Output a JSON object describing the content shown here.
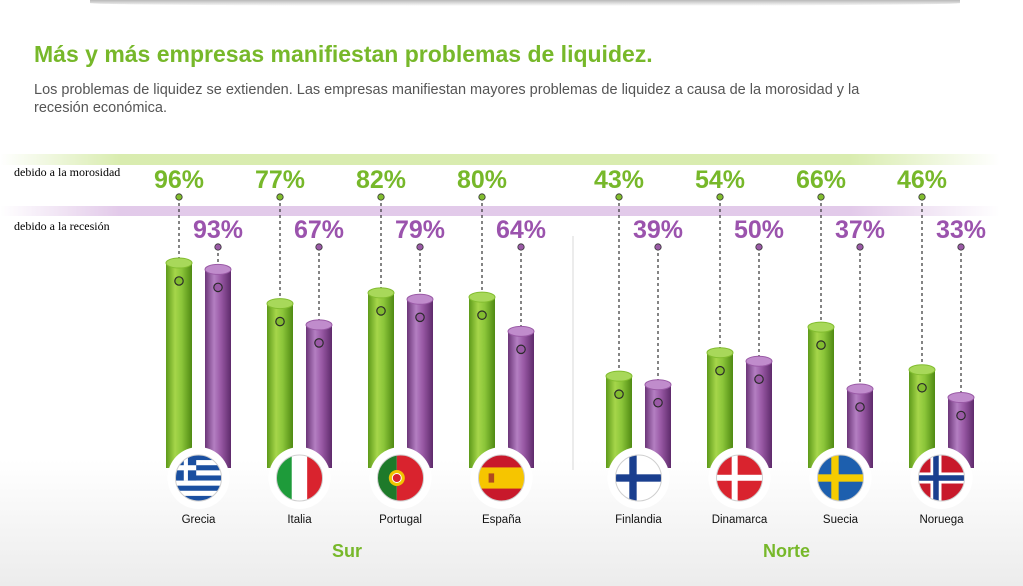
{
  "header": {
    "title": "Más y más empresas manifiestan problemas de liquidez.",
    "subtitle": "Los problemas de liquidez se extienden. Las empresas manifiestan mayores problemas de liquidez a causa de la morosidad y la recesión económica."
  },
  "rows": {
    "morosidad": "debido a la morosidad",
    "recesion": "debido a la recesión"
  },
  "groups": {
    "sur": "Sur",
    "norte": "Norte"
  },
  "colors": {
    "morosidad": "#82bd2f",
    "recesion": "#9a5aa6",
    "morosidad_text": "#77b82a",
    "recesion_text": "#9b53ad"
  },
  "chart_data": {
    "type": "bar",
    "categories": [
      "Grecia",
      "Italia",
      "Portugal",
      "España",
      "Finlandia",
      "Dinamarca",
      "Suecia",
      "Noruega"
    ],
    "groups": [
      {
        "name": "Sur",
        "categories": [
          "Grecia",
          "Italia",
          "Portugal",
          "España"
        ]
      },
      {
        "name": "Norte",
        "categories": [
          "Finlandia",
          "Dinamarca",
          "Suecia",
          "Noruega"
        ]
      }
    ],
    "series": [
      {
        "name": "debido a la morosidad",
        "values": [
          96,
          77,
          82,
          80,
          43,
          54,
          66,
          46
        ]
      },
      {
        "name": "debido a la recesión",
        "values": [
          93,
          67,
          79,
          64,
          39,
          50,
          37,
          33
        ]
      }
    ],
    "ylim": [
      0,
      100
    ],
    "unit": "%",
    "flags": [
      "flag-greece-icon",
      "flag-italy-icon",
      "flag-portugal-icon",
      "flag-spain-icon",
      "flag-finland-icon",
      "flag-denmark-icon",
      "flag-sweden-icon",
      "flag-norway-icon"
    ]
  }
}
